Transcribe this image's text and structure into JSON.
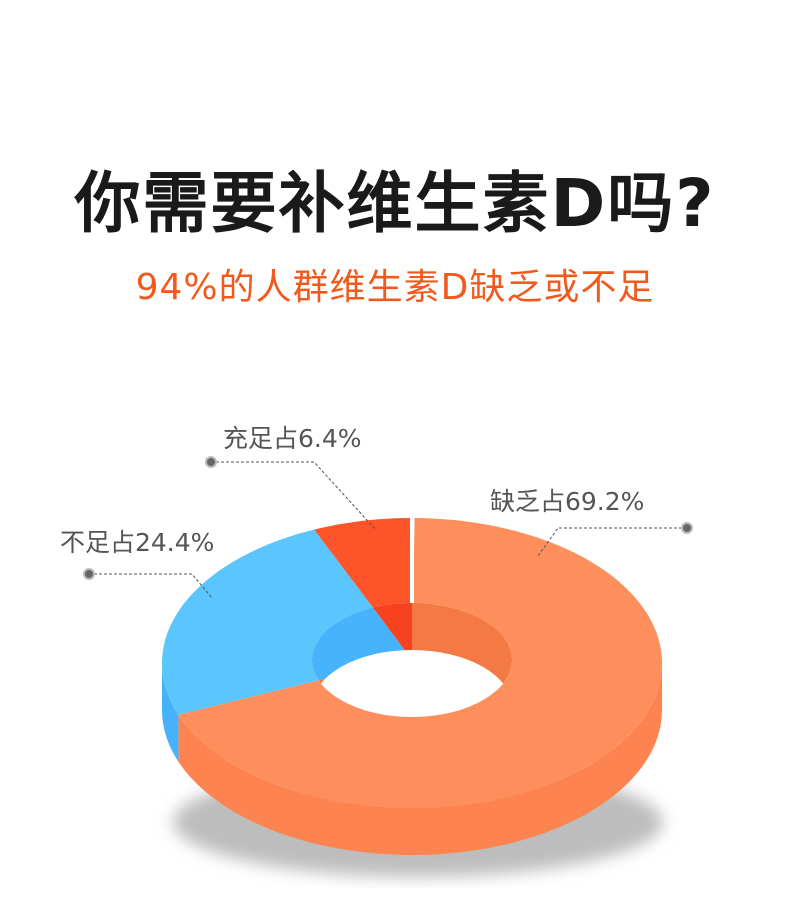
{
  "header": {
    "title": "你需要补维生素D吗?",
    "subtitle": "94%的人群维生素D缺乏或不足"
  },
  "chart_data": {
    "type": "pie",
    "style": "3d-donut",
    "title": "你需要补维生素D吗?",
    "subtitle": "94%的人群维生素D缺乏或不足",
    "slices": [
      {
        "label": "缺乏占69.2%",
        "value": 69.2,
        "color": "#fe8f5c",
        "side": "#fd8450",
        "inner": "#f47a45"
      },
      {
        "label": "不足占24.4%",
        "value": 24.4,
        "color": "#5bc6fe",
        "side": "#46b2fc",
        "inner": "#48b3fd"
      },
      {
        "label": "充足占6.4%",
        "value": 6.4,
        "color": "#fe5429",
        "side": "#f04a22",
        "inner": "#f7421f"
      }
    ],
    "start": "12 o'clock",
    "direction": "clockwise"
  }
}
